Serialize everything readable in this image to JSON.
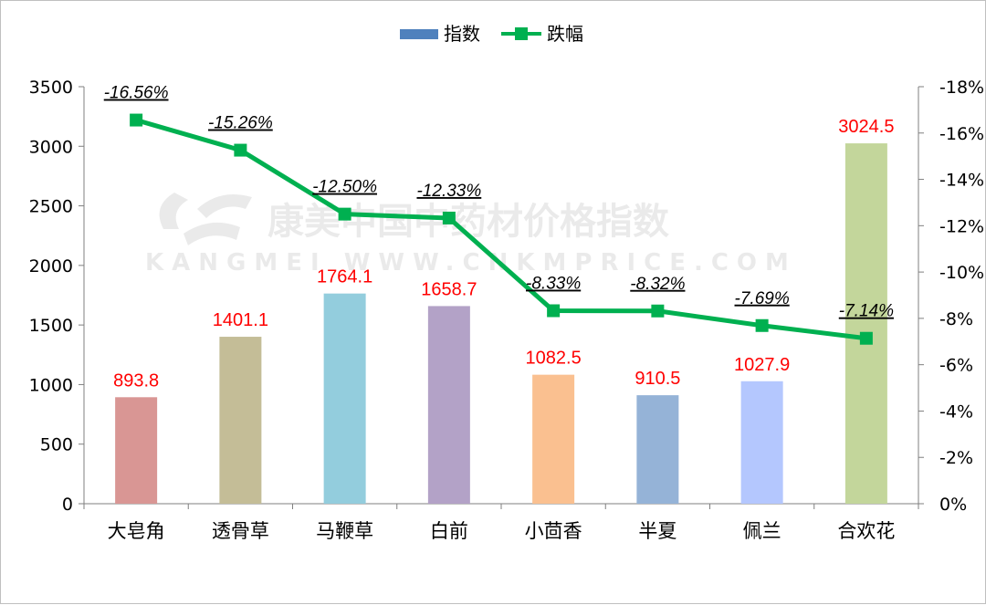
{
  "watermark": {
    "cn": "康美中国中药材价格指数",
    "en": "KANGMEI WWW.CNKMPRICE.COM"
  },
  "colors": {
    "line": "#00b050",
    "bar_label": "#ff0000",
    "legend_bar": "#4f81bd",
    "axis": "#7f7f7f"
  },
  "chart_data": {
    "type": "bar",
    "categories": [
      "大皂角",
      "透骨草",
      "马鞭草",
      "白前",
      "小茴香",
      "半夏",
      "佩兰",
      "合欢花"
    ],
    "series": [
      {
        "name": "指数",
        "type": "bar",
        "axis": "left",
        "values": [
          893.8,
          1401.1,
          1764.1,
          1658.7,
          1082.5,
          910.5,
          1027.9,
          3024.5
        ],
        "value_labels": [
          "893.8",
          "1401.1",
          "1764.1",
          "1658.7",
          "1082.5",
          "910.5",
          "1027.9",
          "3024.5"
        ],
        "colors": [
          "#d99694",
          "#c4bd97",
          "#93cddd",
          "#b3a2c7",
          "#fac090",
          "#95b3d7",
          "#b4c7fe",
          "#c3d69b"
        ]
      },
      {
        "name": "跌幅",
        "type": "line",
        "axis": "right",
        "values": [
          -16.56,
          -15.26,
          -12.5,
          -12.33,
          -8.33,
          -8.32,
          -7.69,
          -7.14
        ],
        "value_labels": [
          "-16.56%",
          "-15.26%",
          "-12.50%",
          "-12.33%",
          "-8.33%",
          "-8.32%",
          "-7.69%",
          "-7.14%"
        ]
      }
    ],
    "y_left": {
      "min": 0,
      "max": 3500,
      "ticks": [
        0,
        500,
        1000,
        1500,
        2000,
        2500,
        3000,
        3500
      ],
      "tick_labels": [
        "0",
        "500",
        "1000",
        "1500",
        "2000",
        "2500",
        "3000",
        "3500"
      ]
    },
    "y_right": {
      "min": 0,
      "max": -18,
      "reversed": true,
      "ticks": [
        0,
        -2,
        -4,
        -6,
        -8,
        -10,
        -12,
        -14,
        -16,
        -18
      ],
      "tick_labels": [
        "0%",
        "-2%",
        "-4%",
        "-6%",
        "-8%",
        "-10%",
        "-12%",
        "-14%",
        "-16%",
        "-18%"
      ]
    },
    "legend": {
      "position": "top",
      "items": [
        "指数",
        "跌幅"
      ]
    },
    "grid": false
  }
}
